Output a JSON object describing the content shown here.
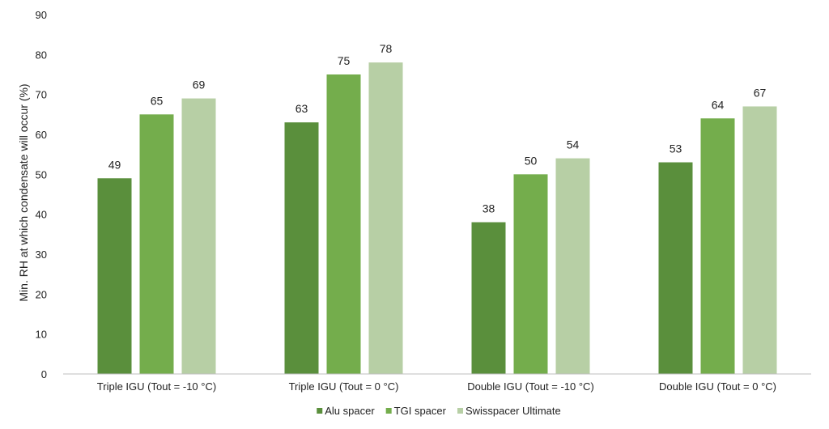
{
  "chart_data": {
    "type": "bar",
    "title": "",
    "xlabel": "",
    "ylabel": "Min. RH at which condensate will occur (%)",
    "ylim": [
      0,
      90
    ],
    "yticks": [
      0,
      10,
      20,
      30,
      40,
      50,
      60,
      70,
      80,
      90
    ],
    "grid": false,
    "legend_position": "bottom",
    "categories": [
      "Triple IGU (Tout = -10 °C)",
      "Triple IGU  (Tout = 0 °C)",
      "Double IGU (Tout = -10 °C)",
      "Double IGU (Tout = 0 °C)"
    ],
    "series": [
      {
        "name": "Alu spacer",
        "color": "#5a8f3c",
        "values": [
          49,
          63,
          38,
          53
        ]
      },
      {
        "name": "TGI spacer",
        "color": "#74ad4c",
        "values": [
          65,
          75,
          50,
          64
        ]
      },
      {
        "name": "Swisspacer Ultimate",
        "color": "#b7cfa5",
        "values": [
          69,
          78,
          54,
          67
        ]
      }
    ]
  }
}
